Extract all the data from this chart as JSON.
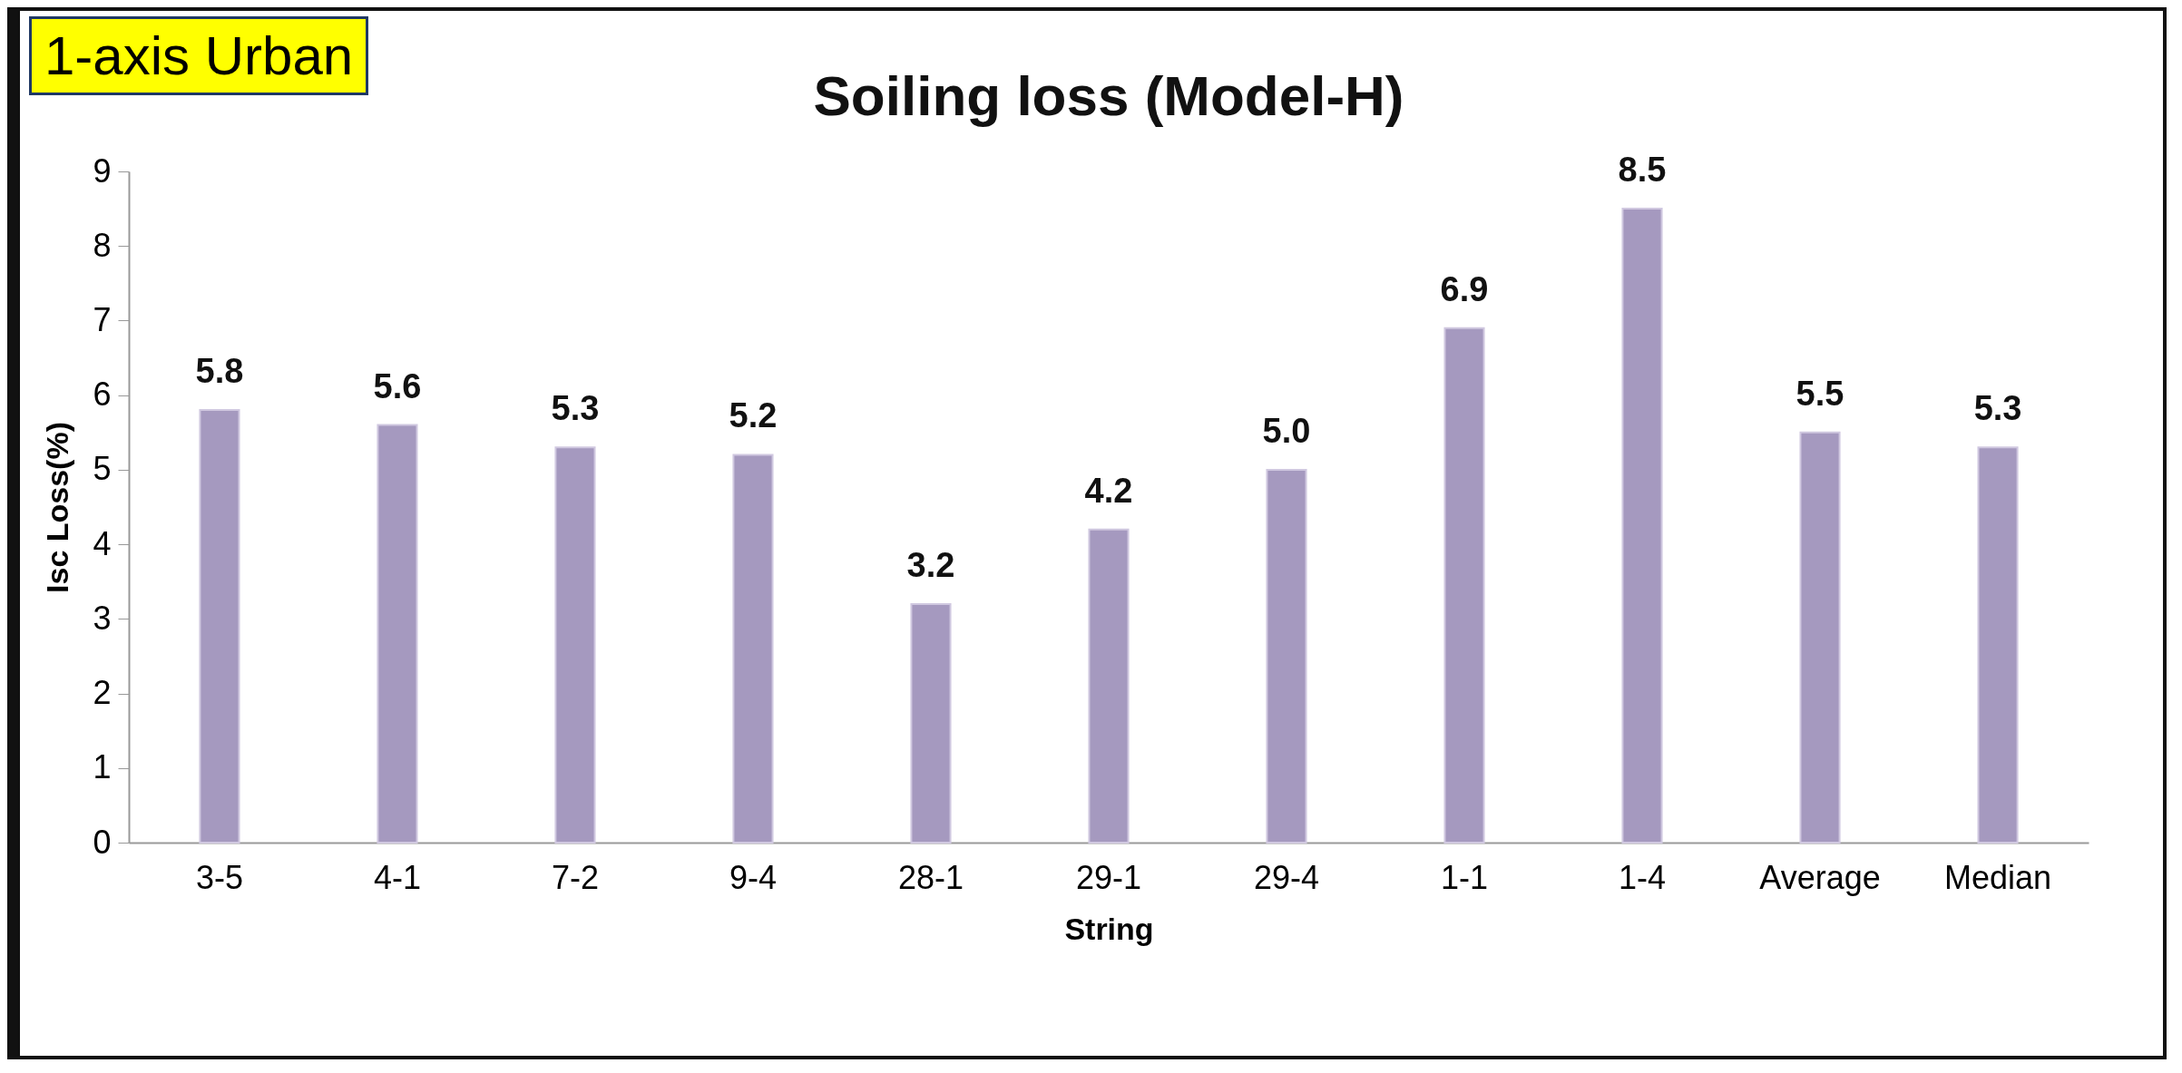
{
  "chart_data": {
    "type": "bar",
    "title": "Soiling loss (Model-H)",
    "xlabel": "String",
    "ylabel": "Isc Loss(%)",
    "annotations": [
      "1-axis Urban"
    ],
    "categories": [
      "3-5",
      "4-1",
      "7-2",
      "9-4",
      "28-1",
      "29-1",
      "29-4",
      "1-1",
      "1-4",
      "Average",
      "Median"
    ],
    "values": [
      5.8,
      5.6,
      5.3,
      5.2,
      3.2,
      4.2,
      5.0,
      6.9,
      8.5,
      5.5,
      5.3
    ],
    "color": "#a599bf",
    "ylim": [
      0,
      9
    ],
    "yticks": [
      0,
      1,
      2,
      3,
      4,
      5,
      6,
      7,
      8,
      9
    ],
    "value_labels": [
      "5.8",
      "5.6",
      "5.3",
      "5.2",
      "3.2",
      "4.2",
      "5.0",
      "6.9",
      "8.5",
      "5.5",
      "5.3"
    ],
    "grid": false
  }
}
